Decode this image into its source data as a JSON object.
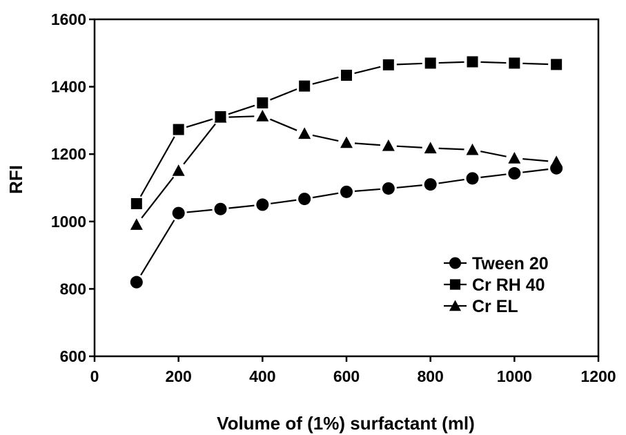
{
  "chart_data": {
    "type": "line",
    "title": "",
    "xlabel": "Volume of (1%) surfactant (ml)",
    "ylabel": "RFI",
    "xlim": [
      0,
      1200
    ],
    "ylim": [
      600,
      1600
    ],
    "x_ticks": [
      0,
      200,
      400,
      600,
      800,
      1000,
      1200
    ],
    "y_ticks": [
      600,
      800,
      1000,
      1200,
      1400,
      1600
    ],
    "x_tick_labels": [
      "0",
      "200",
      "400",
      "600",
      "800",
      "1000",
      "1200"
    ],
    "y_tick_labels": [
      "600",
      "800",
      "1000",
      "1200",
      "1400",
      "1600"
    ],
    "grid": false,
    "legend_position": "bottom-right",
    "x": [
      100,
      200,
      300,
      400,
      500,
      600,
      700,
      800,
      900,
      1000,
      1100
    ],
    "series": [
      {
        "name": "Tween 20",
        "marker": "circle",
        "values": [
          820,
          1025,
          1037,
          1050,
          1067,
          1088,
          1098,
          1110,
          1128,
          1143,
          1158
        ]
      },
      {
        "name": "Cr RH 40",
        "marker": "square",
        "values": [
          1053,
          1273,
          1311,
          1352,
          1402,
          1434,
          1465,
          1470,
          1474,
          1470,
          1466
        ]
      },
      {
        "name": "Cr EL",
        "marker": "triangle",
        "values": [
          991,
          1151,
          1309,
          1313,
          1261,
          1234,
          1225,
          1218,
          1213,
          1188,
          1177
        ]
      }
    ],
    "colors": {
      "line": "#000000",
      "marker": "#000000",
      "background": "#ffffff"
    }
  }
}
